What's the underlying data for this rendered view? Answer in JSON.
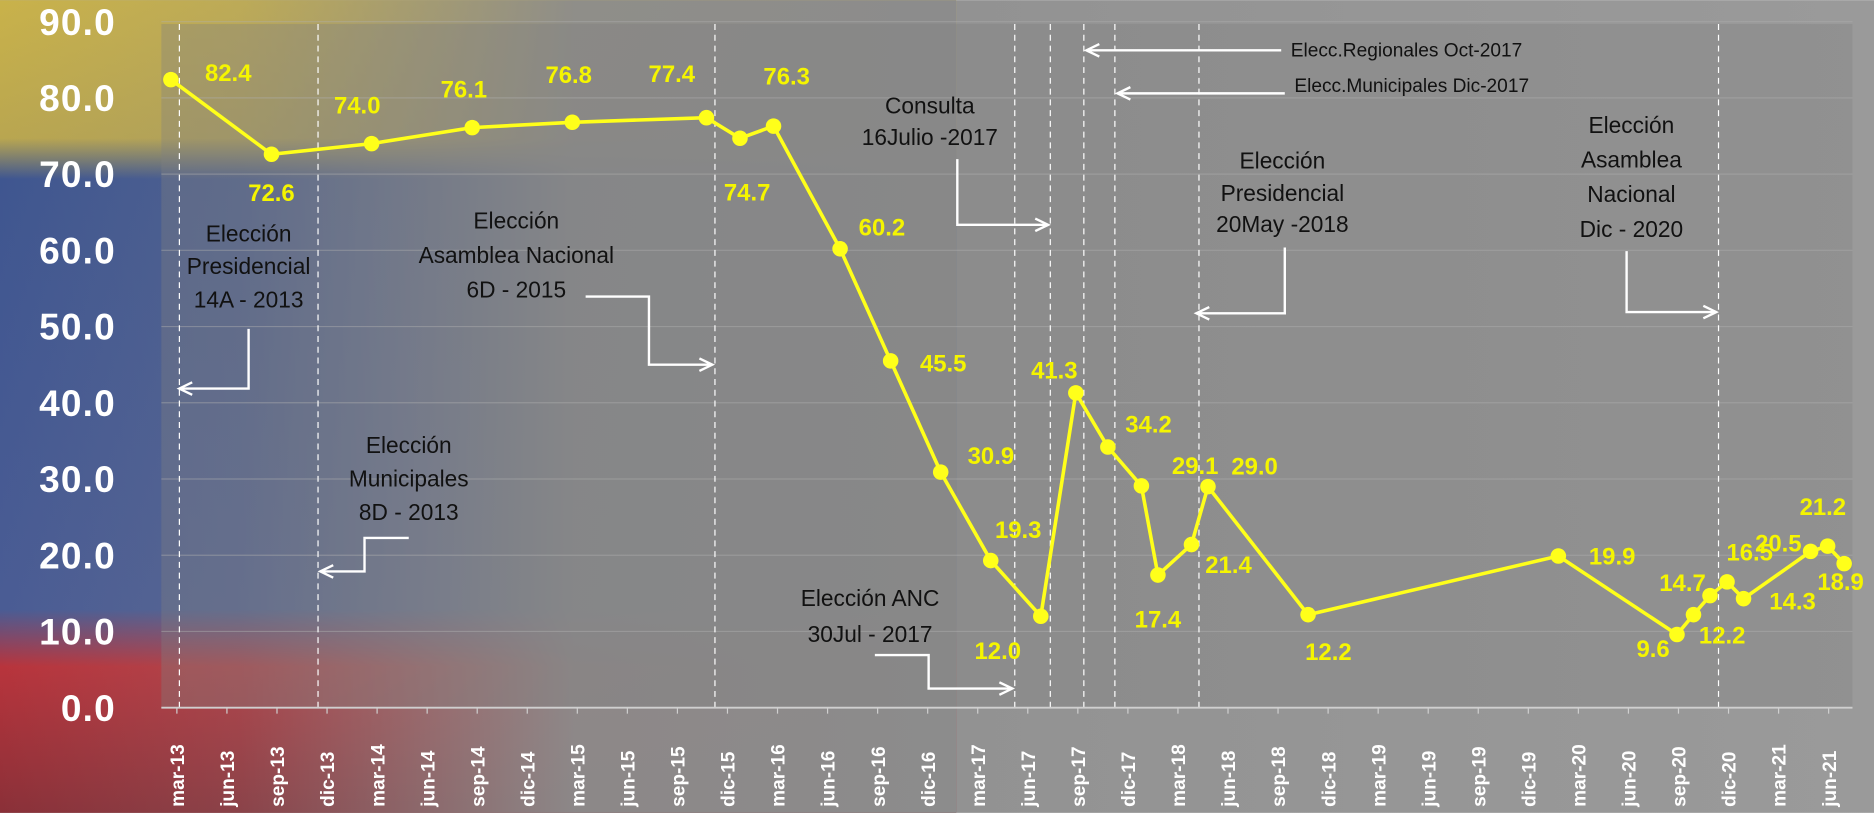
{
  "chart_data": {
    "type": "line",
    "xlim": [
      -0.3,
      33.4
    ],
    "xticks": [
      {
        "value": 0,
        "label": "mar-13"
      },
      {
        "value": 1,
        "label": "jun-13"
      },
      {
        "value": 2,
        "label": "sep-13"
      },
      {
        "value": 3,
        "label": "dic-13"
      },
      {
        "value": 4,
        "label": "mar-14"
      },
      {
        "value": 5,
        "label": "jun-14"
      },
      {
        "value": 6,
        "label": "sep-14"
      },
      {
        "value": 7,
        "label": "dic-14"
      },
      {
        "value": 8,
        "label": "mar-15"
      },
      {
        "value": 9,
        "label": "jun-15"
      },
      {
        "value": 10,
        "label": "sep-15"
      },
      {
        "value": 11,
        "label": "dic-15"
      },
      {
        "value": 12,
        "label": "mar-16"
      },
      {
        "value": 13,
        "label": "jun-16"
      },
      {
        "value": 14,
        "label": "sep-16"
      },
      {
        "value": 15,
        "label": "dic-16"
      },
      {
        "value": 16,
        "label": "mar-17"
      },
      {
        "value": 17,
        "label": "jun-17"
      },
      {
        "value": 18,
        "label": "sep-17"
      },
      {
        "value": 19,
        "label": "dic-17"
      },
      {
        "value": 20,
        "label": "mar-18"
      },
      {
        "value": 21,
        "label": "jun-18"
      },
      {
        "value": 22,
        "label": "sep-18"
      },
      {
        "value": 23,
        "label": "dic-18"
      },
      {
        "value": 24,
        "label": "mar-19"
      },
      {
        "value": 25,
        "label": "jun-19"
      },
      {
        "value": 26,
        "label": "sep-19"
      },
      {
        "value": 27,
        "label": "dic-19"
      },
      {
        "value": 28,
        "label": "mar-20"
      },
      {
        "value": 29,
        "label": "jun-20"
      },
      {
        "value": 30,
        "label": "sep-20"
      },
      {
        "value": 31,
        "label": "dic-20"
      },
      {
        "value": 32,
        "label": "mar-21"
      },
      {
        "value": 33,
        "label": "jun-21"
      }
    ],
    "ylim": [
      0,
      90
    ],
    "yticks": [
      {
        "value": 0,
        "label": "0.0"
      },
      {
        "value": 10,
        "label": "10.0"
      },
      {
        "value": 20,
        "label": "20.0"
      },
      {
        "value": 30,
        "label": "30.0"
      },
      {
        "value": 40,
        "label": "40.0"
      },
      {
        "value": 50,
        "label": "50.0"
      },
      {
        "value": 60,
        "label": "60.0"
      },
      {
        "value": 70,
        "label": "70.0"
      },
      {
        "value": 80,
        "label": "80.0"
      },
      {
        "value": 90,
        "label": "90.0"
      }
    ],
    "grid": true,
    "color": "#ffff1a",
    "x": [
      -0.12,
      1.89,
      3.89,
      5.9,
      7.9,
      10.58,
      11.25,
      11.92,
      13.25,
      14.26,
      15.26,
      16.26,
      17.26,
      17.96,
      18.6,
      19.27,
      19.6,
      20.27,
      20.6,
      22.6,
      27.6,
      29.97,
      30.3,
      30.63,
      30.97,
      31.3,
      32.64,
      32.98,
      33.31
    ],
    "values": [
      82.4,
      72.6,
      74.0,
      76.1,
      76.8,
      77.4,
      74.7,
      76.3,
      60.2,
      45.5,
      30.9,
      19.3,
      12.0,
      41.3,
      34.2,
      29.1,
      17.4,
      21.4,
      29.0,
      12.2,
      19.9,
      9.6,
      12.2,
      14.7,
      16.5,
      14.3,
      20.5,
      21.2,
      18.9
    ],
    "value_labels": [
      "82.4",
      "72.6",
      "74.0",
      "76.1",
      "76.8",
      "77.4",
      "74.7",
      "76.3",
      "60.2",
      "45.5",
      "30.9",
      "19.3",
      "12.0",
      "41.3",
      "34.2",
      "29.1",
      "17.4",
      "21.4",
      "29.0",
      "12.2",
      "19.9",
      "9.6",
      "12.2",
      "14.7",
      "16.5",
      "14.3",
      "20.5",
      "21.2",
      "18.9"
    ],
    "annotations": [
      {
        "lines": [
          "Elección",
          "Presidencial",
          "14A - 2013"
        ],
        "x": 0.05
      },
      {
        "lines": [
          "Elección",
          "Municipales",
          "8D - 2013"
        ],
        "x": 2.82
      },
      {
        "lines": [
          "Elección",
          "Asamblea Nacional",
          "6D - 2015"
        ],
        "x": 10.75
      },
      {
        "lines": [
          "Elección ANC",
          "30Jul - 2017"
        ],
        "x": 16.74
      },
      {
        "lines": [
          "Consulta",
          "16Julio -2017"
        ],
        "x": 17.45
      },
      {
        "lines": [
          "Elecc.Regionales Oct-2017"
        ],
        "x": 18.12
      },
      {
        "lines": [
          "Elecc.Municipales Dic-2017"
        ],
        "x": 18.74
      },
      {
        "lines": [
          "Elección",
          "Presidencial",
          "20May -2018"
        ],
        "x": 20.42
      },
      {
        "lines": [
          "Elección",
          "Asamblea",
          "Nacional",
          "Dic - 2020"
        ],
        "x": 30.8
      }
    ]
  }
}
